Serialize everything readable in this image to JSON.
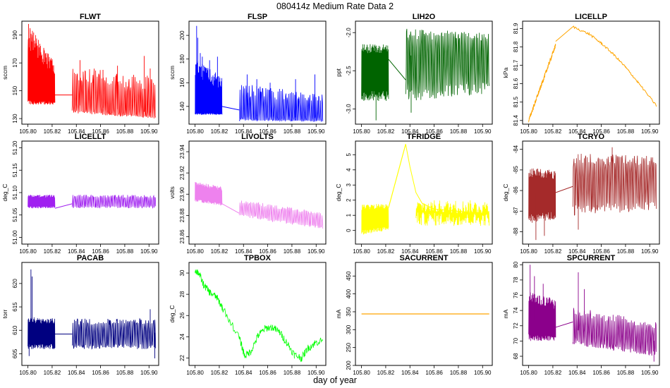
{
  "figure": {
    "title": "080414z   Medium Rate Data 2",
    "xlabel": "day of year"
  },
  "chart_data": [
    {
      "type": "line",
      "title": "FLWT",
      "ylabel": "sccm",
      "color": "#ff0000",
      "xlim": [
        105.795,
        105.908
      ],
      "ylim": [
        126,
        200
      ],
      "xticks": [
        105.8,
        105.82,
        105.84,
        105.86,
        105.88,
        105.9
      ],
      "yticks": [
        130,
        150,
        170,
        190
      ],
      "segments": [
        {
          "x": [
            105.8,
            105.8223
          ],
          "base": [
            152,
            147
          ],
          "lo": [
            140,
            140
          ],
          "hi": [
            198,
            170
          ],
          "spikes": [
            [
              105.8005,
              198
            ],
            [
              105.8018,
              195
            ],
            [
              105.8035,
              190
            ],
            [
              105.8052,
              186
            ],
            [
              105.8075,
              182
            ],
            [
              105.81,
              175
            ],
            [
              105.8135,
              170
            ]
          ]
        },
        {
          "x": [
            105.8365,
            105.9055
          ],
          "base": [
            140,
            134
          ],
          "lo": [
            134,
            130
          ],
          "hi": [
            168,
            160
          ],
          "spikes": [
            [
              105.843,
              172
            ],
            [
              105.862,
              165
            ],
            [
              105.874,
              168
            ],
            [
              105.896,
              175
            ],
            [
              105.901,
              166
            ]
          ]
        }
      ],
      "gap_line": [
        [
          105.8223,
          147
        ],
        [
          105.8365,
          147
        ]
      ]
    },
    {
      "type": "line",
      "title": "FLSP",
      "ylabel": "sccm",
      "color": "#0000ff",
      "xlim": [
        105.795,
        105.908
      ],
      "ylim": [
        125,
        212
      ],
      "xticks": [
        105.8,
        105.82,
        105.84,
        105.86,
        105.88,
        105.9
      ],
      "yticks": [
        140,
        160,
        180,
        200
      ],
      "segments": [
        {
          "x": [
            105.8,
            105.8223
          ],
          "base": [
            138,
            136
          ],
          "lo": [
            133,
            133
          ],
          "hi": [
            180,
            165
          ],
          "spikes": [
            [
              105.8013,
              208
            ],
            [
              105.8022,
              198
            ],
            [
              105.8043,
              185
            ],
            [
              105.806,
              182
            ],
            [
              105.812,
              179
            ],
            [
              105.8185,
              182
            ]
          ]
        },
        {
          "x": [
            105.8365,
            105.9055
          ],
          "base": [
            132,
            130
          ],
          "lo": [
            128,
            127
          ],
          "hi": [
            160,
            150
          ],
          "spikes": [
            [
              105.843,
              167
            ],
            [
              105.851,
              163
            ],
            [
              105.862,
              160
            ],
            [
              105.883,
              163
            ],
            [
              105.899,
              167
            ]
          ]
        }
      ],
      "gap_line": [
        [
          105.8223,
          140
        ],
        [
          105.8365,
          137
        ]
      ]
    },
    {
      "type": "line",
      "title": "LIH2O",
      "ylabel": "ppt",
      "color": "#006400",
      "xlim": [
        105.795,
        105.908
      ],
      "ylim": [
        -3.2,
        -1.85
      ],
      "xticks": [
        105.8,
        105.82,
        105.84,
        105.86,
        105.88,
        105.9
      ],
      "yticks": [
        -3.0,
        -2.5,
        -2.0
      ],
      "segments": [
        {
          "x": [
            105.8,
            105.8223
          ],
          "base": [
            -2.45,
            -2.45
          ],
          "lo": [
            -2.9,
            -2.9
          ],
          "hi": [
            -2.15,
            -2.15
          ],
          "spikes": [
            [
              105.812,
              -3.15
            ]
          ]
        },
        {
          "x": [
            105.8365,
            105.9055
          ],
          "base": [
            -2.3,
            -2.3
          ],
          "lo": [
            -2.9,
            -2.8
          ],
          "hi": [
            -1.95,
            -2.0
          ],
          "spikes": [
            [
              105.841,
              -3.05
            ]
          ]
        }
      ],
      "gap_line": [
        [
          105.8223,
          -2.35
        ],
        [
          105.8365,
          -2.62
        ]
      ]
    },
    {
      "type": "line",
      "title": "LICELLP",
      "ylabel": "kPa",
      "color": "#ffa500",
      "xlim": [
        105.795,
        105.908
      ],
      "ylim": [
        81.38,
        81.94
      ],
      "xticks": [
        105.8,
        105.82,
        105.84,
        105.86,
        105.88,
        105.9
      ],
      "yticks": [
        81.4,
        81.5,
        81.6,
        81.7,
        81.8,
        81.9
      ],
      "segments": [
        {
          "x": [
            105.8,
            105.8223
          ],
          "base": [
            81.4,
            81.81
          ],
          "lo": [
            81.4,
            81.8
          ],
          "hi": [
            81.41,
            81.82
          ],
          "noise": 0.012
        },
        {
          "x": [
            105.8365,
            105.9055
          ],
          "base": [
            81.91,
            81.48
          ],
          "lo": [
            81.9,
            81.47
          ],
          "hi": [
            81.92,
            81.49
          ],
          "noise": 0.006
        }
      ],
      "curve": [
        [
          105.8365,
          81.91
        ],
        [
          105.85,
          81.87
        ],
        [
          105.86,
          81.82
        ],
        [
          105.87,
          81.76
        ],
        [
          105.88,
          81.69
        ],
        [
          105.89,
          81.61
        ],
        [
          105.9055,
          81.48
        ]
      ],
      "gap_line": [
        [
          105.8223,
          81.83
        ],
        [
          105.8365,
          81.91
        ]
      ]
    },
    {
      "type": "line",
      "title": "LICELLT",
      "ylabel": "deg_C",
      "color": "#a020f0",
      "xlim": [
        105.795,
        105.908
      ],
      "ylim": [
        50.985,
        51.215
      ],
      "xticks": [
        105.8,
        105.82,
        105.84,
        105.86,
        105.88,
        105.9
      ],
      "yticks": [
        51.0,
        51.05,
        51.1,
        51.15,
        51.2
      ],
      "segments": [
        {
          "x": [
            105.8,
            105.8223
          ],
          "base": [
            51.08,
            51.08
          ],
          "lo": [
            51.065,
            51.065
          ],
          "hi": [
            51.095,
            51.095
          ]
        },
        {
          "x": [
            105.8365,
            105.9055
          ],
          "base": [
            51.08,
            51.08
          ],
          "lo": [
            51.065,
            51.065
          ],
          "hi": [
            51.095,
            51.095
          ]
        }
      ],
      "gap_line": [
        [
          105.8223,
          51.065
        ],
        [
          105.8365,
          51.075
        ]
      ]
    },
    {
      "type": "line",
      "title": "LIVOLTS",
      "ylabel": "volts",
      "color": "#ee82ee",
      "xlim": [
        105.795,
        105.908
      ],
      "ylim": [
        23.853,
        23.95
      ],
      "xticks": [
        105.8,
        105.82,
        105.84,
        105.86,
        105.88,
        105.9
      ],
      "yticks": [
        23.86,
        23.88,
        23.9,
        23.92,
        23.94
      ],
      "segments": [
        {
          "x": [
            105.8,
            105.8223
          ],
          "base": [
            23.902,
            23.898
          ],
          "lo": [
            23.893,
            23.889
          ],
          "hi": [
            23.912,
            23.907
          ]
        },
        {
          "x": [
            105.8365,
            105.9055
          ],
          "base": [
            23.887,
            23.875
          ],
          "lo": [
            23.879,
            23.867
          ],
          "hi": [
            23.895,
            23.883
          ]
        }
      ],
      "gap_line": [
        [
          105.8223,
          23.891
        ],
        [
          105.8365,
          23.882
        ]
      ]
    },
    {
      "type": "line",
      "title": "TFRIDGE",
      "ylabel": "deg_C",
      "color": "#ffff00",
      "xlim": [
        105.795,
        105.908
      ],
      "ylim": [
        -0.9,
        5.9
      ],
      "xticks": [
        105.8,
        105.82,
        105.84,
        105.86,
        105.88,
        105.9
      ],
      "yticks": [
        0,
        1,
        2,
        3,
        4,
        5
      ],
      "segments": [
        {
          "x": [
            105.8,
            105.8223
          ],
          "base": [
            0.8,
            0.9
          ],
          "lo": [
            -0.3,
            0.0
          ],
          "hi": [
            1.7,
            1.8
          ]
        },
        {
          "x": [
            105.8365,
            105.9055
          ],
          "base": [
            1.2,
            1.1
          ],
          "lo": [
            0.3,
            0.2
          ],
          "hi": [
            2.0,
            1.8
          ]
        }
      ],
      "curve": [
        [
          105.8223,
          1.5
        ],
        [
          105.8365,
          5.7
        ],
        [
          105.84,
          4.2
        ],
        [
          105.845,
          2.5
        ],
        [
          105.85,
          1.8
        ],
        [
          105.86,
          1.4
        ],
        [
          105.9055,
          1.1
        ]
      ],
      "gap_line": [
        [
          105.8223,
          1.5
        ],
        [
          105.8365,
          5.7
        ]
      ]
    },
    {
      "type": "line",
      "title": "TCRYO",
      "ylabel": "deg_C",
      "color": "#a52a2a",
      "xlim": [
        105.795,
        105.908
      ],
      "ylim": [
        -88.6,
        -83.6
      ],
      "xticks": [
        105.8,
        105.82,
        105.84,
        105.86,
        105.88,
        105.9
      ],
      "yticks": [
        -88,
        -87,
        -86,
        -85,
        -84
      ],
      "segments": [
        {
          "x": [
            105.8,
            105.8223
          ],
          "base": [
            -86.1,
            -86.1
          ],
          "lo": [
            -87.6,
            -87.4
          ],
          "hi": [
            -84.9,
            -85.0
          ],
          "spikes": [
            [
              105.806,
              -88.4
            ],
            [
              105.813,
              -88.2
            ]
          ]
        },
        {
          "x": [
            105.8365,
            105.9055
          ],
          "base": [
            -85.5,
            -85.5
          ],
          "lo": [
            -87.2,
            -87.0
          ],
          "hi": [
            -84.2,
            -84.3
          ],
          "spikes": [
            [
              105.841,
              -87.9
            ],
            [
              105.869,
              -83.9
            ]
          ]
        }
      ],
      "gap_line": [
        [
          105.8223,
          -86.1
        ],
        [
          105.8365,
          -85.8
        ]
      ]
    },
    {
      "type": "line",
      "title": "PACAB",
      "ylabel": "torr",
      "color": "#000080",
      "xlim": [
        105.795,
        105.908
      ],
      "ylim": [
        602.5,
        624.5
      ],
      "xticks": [
        105.8,
        105.82,
        105.84,
        105.86,
        105.88,
        105.9
      ],
      "yticks": [
        605,
        610,
        615,
        620
      ],
      "segments": [
        {
          "x": [
            105.8,
            105.8223
          ],
          "base": [
            609.5,
            609.5
          ],
          "lo": [
            606,
            606
          ],
          "hi": [
            613,
            612.5
          ],
          "spikes": [
            [
              105.8025,
              623
            ],
            [
              105.8035,
              621.5
            ],
            [
              105.801,
              604.5
            ]
          ]
        },
        {
          "x": [
            105.8365,
            105.9055
          ],
          "base": [
            609.2,
            609.5
          ],
          "lo": [
            606,
            606
          ],
          "hi": [
            612.5,
            612.5
          ],
          "spikes": [
            [
              105.901,
              614.5
            ],
            [
              105.9048,
              604
            ]
          ]
        }
      ],
      "gap_line": [
        [
          105.8223,
          609.2
        ],
        [
          105.8365,
          609.2
        ]
      ]
    },
    {
      "type": "line",
      "title": "TPBOX",
      "ylabel": "deg_C",
      "color": "#00ff00",
      "xlim": [
        105.795,
        105.908
      ],
      "ylim": [
        21.3,
        31.0
      ],
      "xticks": [
        105.8,
        105.82,
        105.84,
        105.86,
        105.88,
        105.9
      ],
      "yticks": [
        22,
        24,
        26,
        28,
        30
      ],
      "curve": [
        [
          105.8,
          30.3
        ],
        [
          105.803,
          30.0
        ],
        [
          105.807,
          28.9
        ],
        [
          105.812,
          28.2
        ],
        [
          105.818,
          27.7
        ],
        [
          105.8223,
          26.8
        ],
        [
          105.8365,
          23.9
        ],
        [
          105.841,
          22.2
        ],
        [
          105.846,
          22.6
        ],
        [
          105.852,
          24.1
        ],
        [
          105.858,
          24.8
        ],
        [
          105.864,
          24.9
        ],
        [
          105.87,
          24.4
        ],
        [
          105.876,
          23.4
        ],
        [
          105.882,
          22.3
        ],
        [
          105.888,
          22.0
        ],
        [
          105.893,
          22.9
        ],
        [
          105.899,
          23.4
        ],
        [
          105.9055,
          23.7
        ]
      ],
      "noise": 0.35
    },
    {
      "type": "line",
      "title": "SACURRENT",
      "ylabel": "mA",
      "color": "#ffa500",
      "xlim": [
        105.795,
        105.908
      ],
      "ylim": [
        200,
        488
      ],
      "xticks": [
        105.8,
        105.82,
        105.84,
        105.86,
        105.88,
        105.9
      ],
      "yticks": [
        200,
        250,
        300,
        350,
        400,
        450
      ],
      "curve": [
        [
          105.8,
          344
        ],
        [
          105.9055,
          344
        ]
      ]
    },
    {
      "type": "line",
      "title": "SPCURRENT",
      "ylabel": "mA",
      "color": "#8b008b",
      "xlim": [
        105.795,
        105.908
      ],
      "ylim": [
        66.8,
        80.3
      ],
      "xticks": [
        105.8,
        105.82,
        105.84,
        105.86,
        105.88,
        105.9
      ],
      "yticks": [
        68,
        70,
        72,
        74,
        76,
        78,
        80
      ],
      "segments": [
        {
          "x": [
            105.8,
            105.8223
          ],
          "base": [
            73,
            72.2
          ],
          "lo": [
            70,
            70
          ],
          "hi": [
            76.5,
            75.5
          ],
          "spikes": [
            [
              105.8012,
              80.0
            ],
            [
              105.8048,
              78.5
            ],
            [
              105.812,
              77.5
            ]
          ]
        },
        {
          "x": [
            105.8365,
            105.9055
          ],
          "base": [
            71.5,
            70.0
          ],
          "lo": [
            69.5,
            68.0
          ],
          "hi": [
            74.5,
            72.5
          ],
          "spikes": [
            [
              105.841,
              79.0
            ],
            [
              105.846,
              76.8
            ],
            [
              105.9035,
              67.3
            ]
          ]
        }
      ],
      "gap_line": [
        [
          105.8223,
          71.8
        ],
        [
          105.8365,
          72.5
        ]
      ]
    }
  ]
}
